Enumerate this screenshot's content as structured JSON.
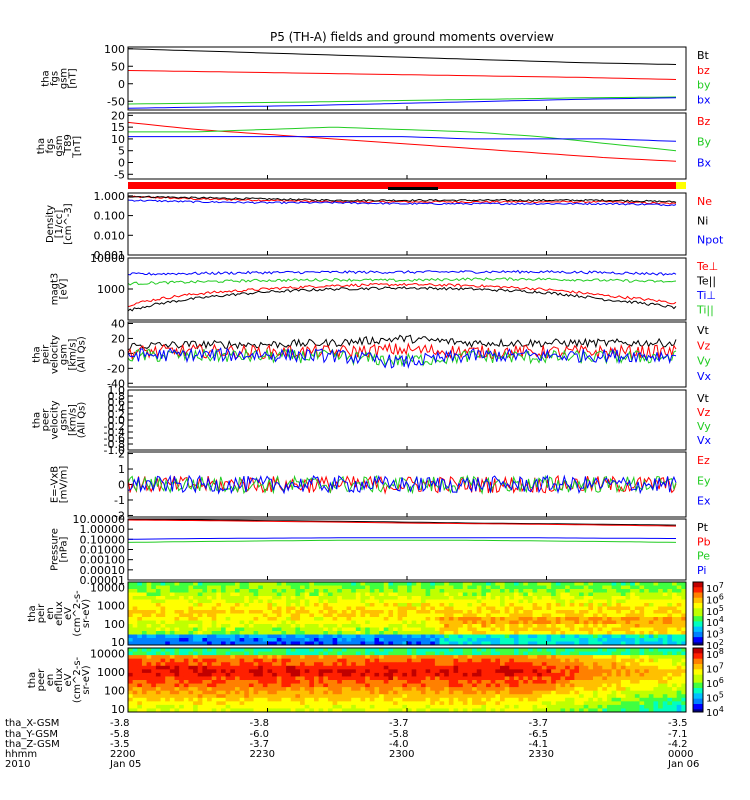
{
  "title": "P5 (TH-A) fields and ground moments overview",
  "colors": {
    "black": "#000000",
    "red": "#ff0000",
    "green": "#22cc22",
    "blue": "#0000ff",
    "yellow": "#ffff00"
  },
  "chart_data": [
    {
      "type": "line",
      "id": "fgs",
      "ylabel": [
        "tha",
        "fgs",
        "gsm",
        "[nT]"
      ],
      "ylim": [
        -75,
        105
      ],
      "yticks": [
        "-50",
        "0",
        "50",
        "100"
      ],
      "ytick_values": [
        -50,
        0,
        50,
        100
      ],
      "series": [
        {
          "name": "Bt",
          "color": "black",
          "values": [
            100,
            92,
            84,
            76,
            68,
            60,
            55
          ]
        },
        {
          "name": "bz",
          "color": "red",
          "values": [
            38,
            34,
            30,
            26,
            22,
            18,
            12
          ]
        },
        {
          "name": "by",
          "color": "green",
          "values": [
            -58,
            -55,
            -52,
            -48,
            -44,
            -40,
            -38
          ]
        },
        {
          "name": "bx",
          "color": "blue",
          "values": [
            -70,
            -66,
            -62,
            -56,
            -50,
            -44,
            -40
          ]
        }
      ]
    },
    {
      "type": "line",
      "id": "t89",
      "ylabel": [
        "tha",
        "fgs",
        "gsm",
        "_T89",
        "[nT]"
      ],
      "ylim": [
        -7,
        21
      ],
      "yticks": [
        "-5",
        "0",
        "5",
        "10",
        "15",
        "20"
      ],
      "ytick_values": [
        -5,
        0,
        5,
        10,
        15,
        20
      ],
      "series": [
        {
          "name": "Bz",
          "color": "red",
          "values": [
            17,
            14,
            12,
            10,
            8,
            6,
            4,
            2,
            0.5
          ]
        },
        {
          "name": "By",
          "color": "green",
          "values": [
            13,
            13,
            14,
            15,
            14,
            13,
            11,
            8,
            5
          ]
        },
        {
          "name": "Bx",
          "color": "blue",
          "values": [
            11,
            11,
            11,
            11,
            11,
            10,
            10,
            10,
            9
          ]
        }
      ]
    },
    {
      "type": "line",
      "id": "density",
      "log": true,
      "ylabel": [
        "Density",
        "[1/cc]",
        "[cm^-3]"
      ],
      "ylim": [
        0.001,
        1.4
      ],
      "yticks": [
        "1.000",
        "0.100",
        "0.010",
        "0.001"
      ],
      "ytick_values": [
        1,
        0.1,
        0.01,
        0.001
      ],
      "series": [
        {
          "name": "Ne",
          "color": "red",
          "values": [
            0.9,
            0.7,
            0.6,
            0.5,
            0.5,
            0.5,
            0.5,
            0.5,
            0.4
          ]
        },
        {
          "name": "Ni",
          "color": "black",
          "values": [
            0.95,
            0.8,
            0.7,
            0.6,
            0.6,
            0.6,
            0.6,
            0.6,
            0.5
          ]
        },
        {
          "name": "Npot",
          "color": "blue",
          "values": [
            0.6,
            0.5,
            0.45,
            0.45,
            0.4,
            0.4,
            0.4,
            0.4,
            0.35
          ]
        }
      ]
    },
    {
      "type": "line",
      "id": "temp",
      "log": true,
      "ylabel": [
        "magt3",
        "[eV]"
      ],
      "ylim": [
        100,
        10000
      ],
      "yticks": [
        "10000",
        "1000"
      ],
      "ytick_values": [
        10000,
        1000
      ],
      "series": [
        {
          "name": "Te⊥",
          "color": "red",
          "values": [
            300,
            700,
            1000,
            1300,
            1400,
            1300,
            1000,
            600,
            350
          ]
        },
        {
          "name": "Te||",
          "color": "black",
          "values": [
            200,
            500,
            800,
            1000,
            1100,
            1000,
            800,
            450,
            250
          ]
        },
        {
          "name": "Ti⊥",
          "color": "blue",
          "values": [
            3000,
            3200,
            3400,
            3500,
            3500,
            3600,
            3600,
            3400,
            3000
          ]
        },
        {
          "name": "Ti||",
          "color": "green",
          "values": [
            1500,
            1700,
            1900,
            2000,
            1900,
            2100,
            2100,
            1900,
            1700
          ]
        }
      ]
    },
    {
      "type": "line",
      "id": "peir",
      "ylabel": [
        "tha",
        "peir",
        "velocity",
        "gsm",
        "[km/s]",
        "(All Qs)"
      ],
      "ylim": [
        -45,
        42
      ],
      "yticks": [
        "40",
        "20",
        "0",
        "-20",
        "-40"
      ],
      "ytick_values": [
        40,
        20,
        0,
        -20,
        -40
      ],
      "series": [
        {
          "name": "Vt",
          "color": "black",
          "values": [
            10,
            12,
            12,
            14,
            20,
            14,
            14,
            14,
            14
          ]
        },
        {
          "name": "Vz",
          "color": "red",
          "values": [
            2,
            3,
            2,
            2,
            5,
            2,
            2,
            2,
            2
          ]
        },
        {
          "name": "Vy",
          "color": "green",
          "values": [
            -3,
            -3,
            -4,
            -4,
            -10,
            -4,
            -5,
            -5,
            -5
          ]
        },
        {
          "name": "Vx",
          "color": "blue",
          "values": [
            -2,
            -2,
            -2,
            -3,
            -12,
            -3,
            -3,
            -3,
            -3
          ]
        }
      ]
    },
    {
      "type": "line",
      "id": "peer",
      "ylabel": [
        "tha",
        "peer",
        "velocity",
        "gsm",
        "[km/s]",
        "(All Qs)"
      ],
      "ylim": [
        -1,
        1
      ],
      "yticks": [
        "1.0",
        "0.8",
        "0.6",
        "0.4",
        "0.2",
        "0.0",
        "-0.2",
        "-0.4",
        "-0.6",
        "-0.8",
        "-1.0"
      ],
      "ytick_values": [
        1,
        0.8,
        0.6,
        0.4,
        0.2,
        0,
        -0.2,
        -0.4,
        -0.6,
        -0.8,
        -1
      ],
      "series": [
        {
          "name": "Vt",
          "color": "black",
          "values": []
        },
        {
          "name": "Vz",
          "color": "red",
          "values": []
        },
        {
          "name": "Vy",
          "color": "green",
          "values": []
        },
        {
          "name": "Vx",
          "color": "blue",
          "values": []
        }
      ]
    },
    {
      "type": "line",
      "id": "efield",
      "ylabel": [
        "E=-VxB",
        "[mV/m]"
      ],
      "ylim": [
        -2.1,
        2.1
      ],
      "yticks": [
        "2",
        "1",
        "0",
        "-1",
        "-2"
      ],
      "ytick_values": [
        2,
        1,
        0,
        -1,
        -2
      ],
      "series": [
        {
          "name": "Ez",
          "color": "red",
          "values": [
            0,
            0,
            0,
            0,
            0,
            0,
            0,
            0,
            0
          ]
        },
        {
          "name": "Ey",
          "color": "green",
          "values": [
            0,
            0,
            0,
            0,
            0,
            0,
            0,
            0,
            0
          ]
        },
        {
          "name": "Ex",
          "color": "blue",
          "values": [
            0,
            0,
            0,
            0,
            0,
            0,
            0,
            0,
            0
          ]
        }
      ]
    },
    {
      "type": "line",
      "id": "pressure",
      "log": true,
      "ylabel": [
        "Pressure",
        "[nPa]"
      ],
      "ylim": [
        1e-05,
        10
      ],
      "yticks": [
        "10.00000",
        "1.00000",
        "0.10000",
        "0.01000",
        "0.00100",
        "0.00010",
        "0.00001"
      ],
      "ytick_values": [
        10,
        1,
        0.1,
        0.01,
        0.001,
        0.0001,
        1e-05
      ],
      "series": [
        {
          "name": "Pt",
          "color": "black",
          "values": [
            9,
            8,
            7,
            6,
            5,
            4,
            3.5,
            3,
            2.5
          ]
        },
        {
          "name": "Pb",
          "color": "red",
          "values": [
            8,
            7,
            6,
            5,
            4,
            3.5,
            3,
            2.5,
            2
          ]
        },
        {
          "name": "Pe",
          "color": "green",
          "values": [
            0.05,
            0.06,
            0.07,
            0.08,
            0.08,
            0.08,
            0.07,
            0.06,
            0.05
          ]
        },
        {
          "name": "Pi",
          "color": "blue",
          "values": [
            0.1,
            0.12,
            0.13,
            0.14,
            0.14,
            0.14,
            0.14,
            0.13,
            0.12
          ]
        }
      ]
    },
    {
      "type": "heatmap",
      "id": "peir_spec",
      "ylabel": [
        "tha",
        "peir",
        "en",
        "eflux",
        "eV",
        "(cm^2-s-",
        "sr-eV)"
      ],
      "ylim": [
        7,
        20000
      ],
      "yticks": [
        "10000",
        "1000",
        "100",
        "10"
      ],
      "ytick_values": [
        10000,
        1000,
        100,
        10
      ],
      "colorbar": [
        "10^7",
        "10^6",
        "10^5",
        "10^4",
        "10^3",
        "10^2"
      ]
    },
    {
      "type": "heatmap",
      "id": "peer_spec",
      "ylabel": [
        "tha",
        "peer",
        "en",
        "eflux",
        "eV",
        "(cm^2-s-",
        "sr-eV)"
      ],
      "ylim": [
        7,
        20000
      ],
      "yticks": [
        "10000",
        "1000",
        "100",
        "10"
      ],
      "ytick_values": [
        10000,
        1000,
        100,
        10
      ],
      "colorbar": [
        "10^8",
        "10^7",
        "10^6",
        "10^5",
        "10^4"
      ]
    }
  ],
  "xaxis": {
    "row_labels": [
      "tha_X-GSM",
      "tha_Y-GSM",
      "tha_Z-GSM",
      "hhmm",
      "2010"
    ],
    "columns": [
      {
        "x": "-3.8",
        "y": "-5.8",
        "z": "-3.5",
        "time": "2200",
        "date": "Jan 05"
      },
      {
        "x": "-3.8",
        "y": "-6.0",
        "z": "-3.7",
        "time": "2230",
        "date": ""
      },
      {
        "x": "-3.7",
        "y": "-5.8",
        "z": "-4.0",
        "time": "2300",
        "date": ""
      },
      {
        "x": "-3.7",
        "y": "-6.5",
        "z": "-4.1",
        "time": "2330",
        "date": ""
      },
      {
        "x": "-3.5",
        "y": "-7.1",
        "z": "-4.2",
        "time": "0000",
        "date": "Jan 06"
      }
    ]
  }
}
